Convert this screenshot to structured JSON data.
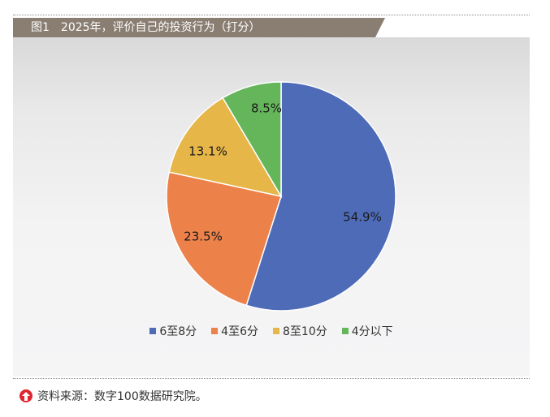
{
  "header": {
    "figure_label": "图1",
    "title": "2025年，评价自己的投资行为（打分）"
  },
  "chart_data": {
    "type": "pie",
    "categories": [
      "6至8分",
      "4至6分",
      "8至10分",
      "4分以下"
    ],
    "values": [
      54.9,
      23.5,
      13.1,
      8.5
    ],
    "value_labels": [
      "54.9%",
      "23.5%",
      "13.1%",
      "8.5%"
    ],
    "colors": [
      "#4e6bb8",
      "#ec814a",
      "#e7b649",
      "#65b65b"
    ],
    "start_angle_deg": 0,
    "direction": "clockwise",
    "legend_position": "bottom"
  },
  "source": {
    "text": "资料来源：数字100数据研究院。",
    "icon": "up-arrow-circle-icon",
    "icon_color": "#e0262f"
  }
}
